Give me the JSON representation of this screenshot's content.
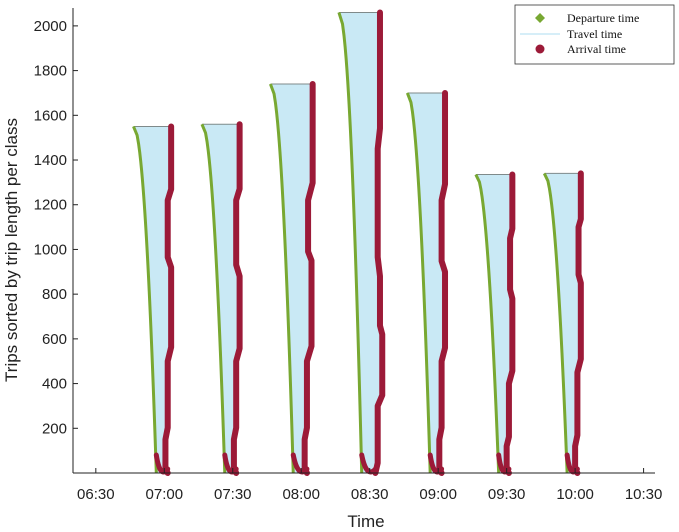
{
  "chart_data": {
    "type": "area",
    "xlabel": "Time",
    "ylabel": "Trips sorted by trip length per class",
    "x_ticks": [
      "06:30",
      "07:00",
      "07:30",
      "08:00",
      "08:30",
      "09:00",
      "09:30",
      "10:00",
      "10:30"
    ],
    "x_tick_minutes": [
      390,
      420,
      450,
      480,
      510,
      540,
      570,
      600,
      630
    ],
    "xlim": [
      "06:20",
      "10:35"
    ],
    "xlim_minutes": [
      380,
      635
    ],
    "y_ticks": [
      200,
      400,
      600,
      800,
      1000,
      1200,
      1400,
      1600,
      1800,
      2000
    ],
    "ylim": [
      0,
      2080
    ],
    "legend": {
      "position": "top-right",
      "entries": [
        "Departure time",
        "Travel time",
        "Arrival time"
      ]
    },
    "colors": {
      "departure": "#78a832",
      "travel": "#c9e9f5",
      "arrival": "#9c1a38"
    },
    "series": [
      {
        "name": "Departure time",
        "marker": "diamond"
      },
      {
        "name": "Travel time",
        "marker": "fill"
      },
      {
        "name": "Arrival time",
        "marker": "circle"
      }
    ],
    "classes": [
      {
        "peak": 1550,
        "dep_top_min": 406.5,
        "dep_bottom_min": 416.5,
        "arr_min": 422.5,
        "arr_steps": [
          [
            1550,
            423
          ],
          [
            1220,
            421.5
          ],
          [
            920,
            423
          ],
          [
            500,
            421.5
          ],
          [
            150,
            420.5
          ],
          [
            0,
            421.5
          ]
        ]
      },
      {
        "peak": 1560,
        "dep_top_min": 436.5,
        "dep_bottom_min": 446.5,
        "arr_min": 452.5,
        "arr_steps": [
          [
            1560,
            453
          ],
          [
            1220,
            451.5
          ],
          [
            880,
            453
          ],
          [
            500,
            451.5
          ],
          [
            150,
            450.5
          ],
          [
            0,
            451.5
          ]
        ]
      },
      {
        "peak": 1740,
        "dep_top_min": 466.5,
        "dep_bottom_min": 476.5,
        "arr_min": 484.5,
        "arr_steps": [
          [
            1740,
            485
          ],
          [
            1220,
            483
          ],
          [
            950,
            484.5
          ],
          [
            500,
            482.5
          ],
          [
            150,
            481.5
          ],
          [
            0,
            482.5
          ]
        ]
      },
      {
        "peak": 2060,
        "dep_top_min": 496.5,
        "dep_bottom_min": 506.5,
        "arr_min": 514,
        "arr_steps": [
          [
            2060,
            514.5
          ],
          [
            1450,
            513.5
          ],
          [
            880,
            514.5
          ],
          [
            620,
            515.5
          ],
          [
            300,
            513.5
          ],
          [
            0,
            512.5
          ]
        ]
      },
      {
        "peak": 1700,
        "dep_top_min": 526.5,
        "dep_bottom_min": 536.5,
        "arr_min": 542.5,
        "arr_steps": [
          [
            1700,
            543
          ],
          [
            1220,
            541.5
          ],
          [
            900,
            543
          ],
          [
            500,
            541.5
          ],
          [
            150,
            540.5
          ],
          [
            0,
            541.5
          ]
        ]
      },
      {
        "peak": 1335,
        "dep_top_min": 556.5,
        "dep_bottom_min": 566.5,
        "arr_min": 572,
        "arr_steps": [
          [
            1335,
            572.5
          ],
          [
            1050,
            571.5
          ],
          [
            780,
            572.5
          ],
          [
            400,
            571
          ],
          [
            120,
            570
          ],
          [
            0,
            571
          ]
        ]
      },
      {
        "peak": 1340,
        "dep_top_min": 586.5,
        "dep_bottom_min": 596.5,
        "arr_min": 602,
        "arr_steps": [
          [
            1340,
            602.5
          ],
          [
            1100,
            601.5
          ],
          [
            850,
            602.5
          ],
          [
            450,
            601
          ],
          [
            120,
            600
          ],
          [
            0,
            601
          ]
        ]
      }
    ]
  }
}
